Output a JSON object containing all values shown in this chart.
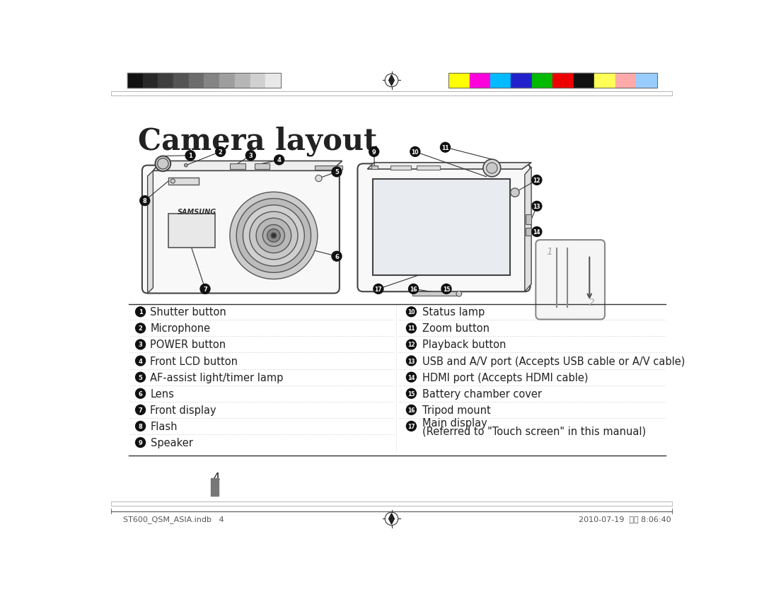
{
  "title": "Camera layout",
  "title_fontsize": 30,
  "bg_color": "#ffffff",
  "page_number": "4",
  "footer_left": "ST600_QSM_ASIA.indb   4",
  "footer_right": "2010-07-19  오후 8:06:40",
  "left_items": [
    {
      "num": "1",
      "text": "Shutter button"
    },
    {
      "num": "2",
      "text": "Microphone"
    },
    {
      "num": "3",
      "text": "POWER button"
    },
    {
      "num": "4",
      "text": "Front LCD button"
    },
    {
      "num": "5",
      "text": "AF-assist light/timer lamp"
    },
    {
      "num": "6",
      "text": "Lens"
    },
    {
      "num": "7",
      "text": "Front display"
    },
    {
      "num": "8",
      "text": "Flash"
    },
    {
      "num": "9",
      "text": "Speaker"
    }
  ],
  "right_items": [
    {
      "num": "10",
      "text": "Status lamp"
    },
    {
      "num": "11",
      "text": "Zoom button"
    },
    {
      "num": "12",
      "text": "Playback button"
    },
    {
      "num": "13",
      "text": "USB and A/V port (Accepts USB cable or A/V cable)"
    },
    {
      "num": "14",
      "text": "HDMI port (Accepts HDMI cable)"
    },
    {
      "num": "15",
      "text": "Battery chamber cover"
    },
    {
      "num": "16",
      "text": "Tripod mount"
    },
    {
      "num": "17",
      "text": "Main display\n(Referred to \"Touch screen\" in this manual)"
    }
  ],
  "grayscale_colors": [
    "#111111",
    "#282828",
    "#3e3e3e",
    "#545454",
    "#6c6c6c",
    "#848484",
    "#9e9e9e",
    "#b6b6b6",
    "#d0d0d0",
    "#e8e8e8"
  ],
  "color_bars": [
    "#ffff00",
    "#ff00dd",
    "#00bbff",
    "#2222cc",
    "#00bb00",
    "#ee0000",
    "#111111",
    "#ffff55",
    "#ffaaaa",
    "#99ccff"
  ],
  "text_color": "#222222",
  "num_badge_color": "#111111",
  "num_badge_text_color": "#ffffff",
  "line_color": "#333333",
  "dot_color": "#cccccc",
  "sep_color": "#333333",
  "page_bar_color": "#777777"
}
